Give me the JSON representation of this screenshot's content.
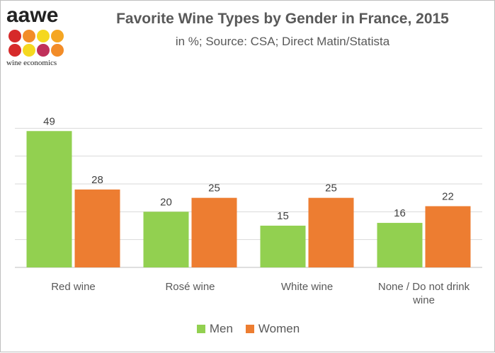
{
  "logo": {
    "brand": "aawe",
    "tagline": "wine economics",
    "dot_colors": [
      "#d62a2a",
      "#f28c28",
      "#f5d820",
      "#f5a623",
      "#d62a2a",
      "#f5d820",
      "#c0305a",
      "#f28c28"
    ]
  },
  "chart_data": {
    "type": "bar",
    "title": "Favorite Wine Types by Gender in France, 2015",
    "subtitle": "in %; Source: CSA; Direct Matin/Statista",
    "categories": [
      "Red wine",
      "Rosé wine",
      "White wine",
      "None / Do not drink wine"
    ],
    "series": [
      {
        "name": "Men",
        "color": "#92d050",
        "values": [
          49,
          20,
          15,
          16
        ]
      },
      {
        "name": "Women",
        "color": "#ed7d31",
        "values": [
          28,
          25,
          25,
          22
        ]
      }
    ],
    "ylim": [
      0,
      60
    ],
    "gridlines": [
      10,
      20,
      30,
      40,
      50
    ],
    "grid": true,
    "legend": "bottom"
  }
}
